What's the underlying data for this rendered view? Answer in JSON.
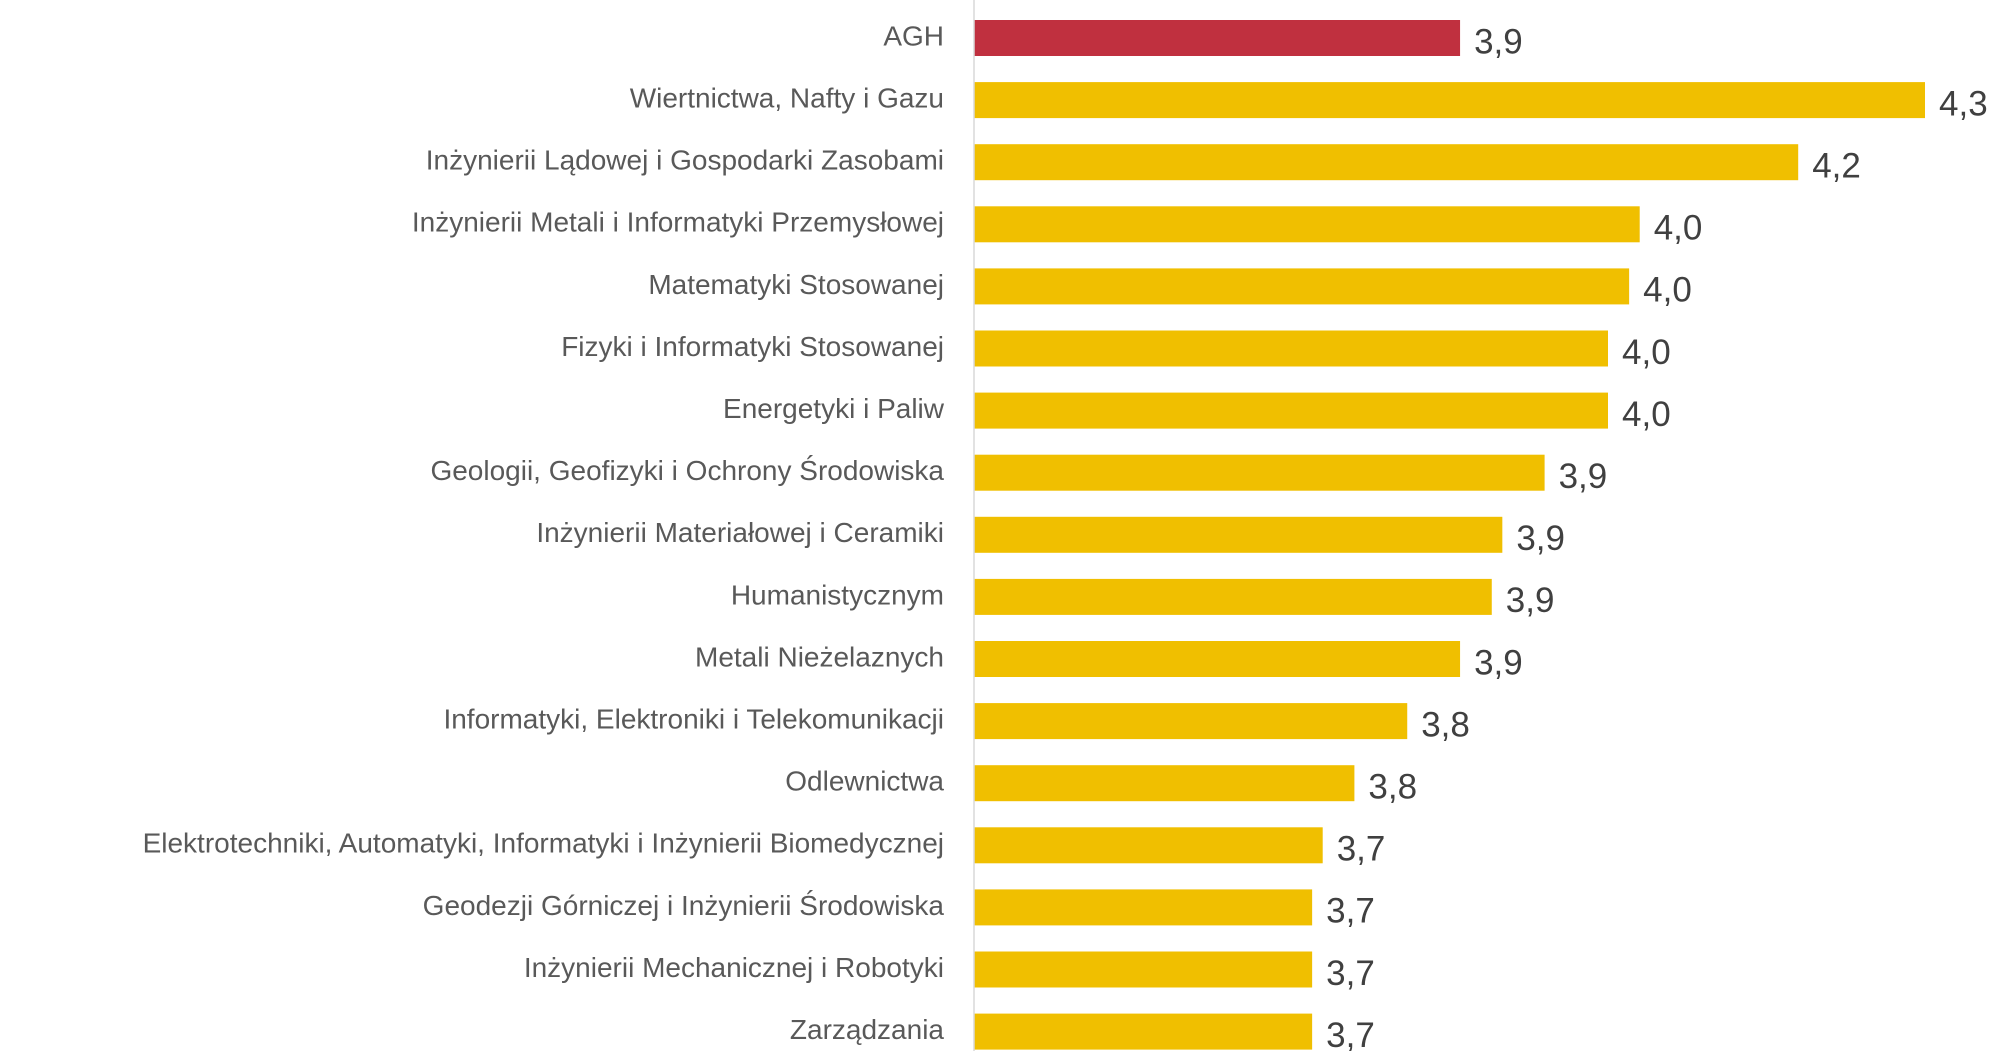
{
  "chart_data": {
    "type": "barh",
    "categories": [
      "AGH",
      "Wiertnictwa, Nafty i Gazu",
      "Inżynierii Lądowej i Gospodarki Zasobami",
      "Inżynierii Metali i Informatyki Przemysłowej",
      "Matematyki Stosowanej",
      "Fizyki i Informatyki Stosowanej",
      "Energetyki i Paliw",
      "Geologii, Geofizyki i Ochrony Środowiska",
      "Inżynierii Materiałowej i Ceramiki",
      "Humanistycznym",
      "Metali Nieżelaznych",
      "Informatyki, Elektroniki i Telekomunikacji",
      "Odlewnictwa",
      "Elektrotechniki, Automatyki, Informatyki i Inżynierii Biomedycznej",
      "Geodezji Górniczej i Inżynierii Środowiska",
      "Inżynierii Mechanicznej i Robotyki",
      "Zarządzania"
    ],
    "values": [
      3.86,
      4.3,
      4.18,
      4.03,
      4.02,
      4.0,
      4.0,
      3.94,
      3.9,
      3.89,
      3.86,
      3.81,
      3.76,
      3.73,
      3.72,
      3.72,
      3.72
    ],
    "value_labels": [
      "3,9",
      "4,3",
      "4,2",
      "4,0",
      "4,0",
      "4,0",
      "4,0",
      "3,9",
      "3,9",
      "3,9",
      "3,9",
      "3,8",
      "3,8",
      "3,7",
      "3,7",
      "3,7",
      "3,7"
    ],
    "colors": [
      "#c0303f",
      "#f0bf00",
      "#f0bf00",
      "#f0bf00",
      "#f0bf00",
      "#f0bf00",
      "#f0bf00",
      "#f0bf00",
      "#f0bf00",
      "#f0bf00",
      "#f0bf00",
      "#f0bf00",
      "#f0bf00",
      "#f0bf00",
      "#f0bf00",
      "#f0bf00",
      "#f0bf00"
    ],
    "xlim": [
      3.4,
      4.3
    ]
  }
}
